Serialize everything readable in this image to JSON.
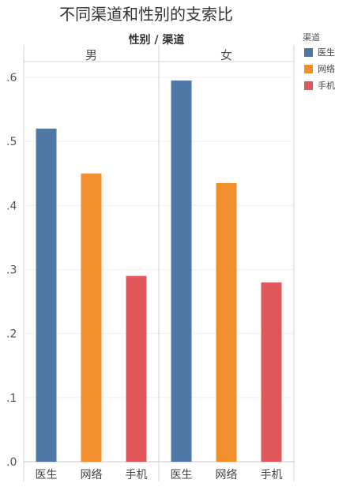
{
  "chart_data": {
    "type": "bar",
    "title": "不同渠道和性别的支索比",
    "subtitle": "性别 / 渠道",
    "panels": [
      {
        "name": "男",
        "categories": [
          "医生",
          "网络",
          "手机"
        ],
        "values": [
          0.52,
          0.45,
          0.29
        ],
        "colors": [
          "#4e79a7",
          "#f28e2b",
          "#e15759"
        ]
      },
      {
        "name": "女",
        "categories": [
          "医生",
          "网络",
          "手机"
        ],
        "values": [
          0.595,
          0.435,
          0.28
        ],
        "colors": [
          "#4e79a7",
          "#f28e2b",
          "#e15759"
        ]
      }
    ],
    "yticks": [
      ".0",
      ".1",
      ".2",
      ".3",
      ".4",
      ".5",
      ".6"
    ],
    "ylim": [
      0,
      0.6
    ],
    "grid": true,
    "legend": {
      "title": "渠道",
      "position": "right",
      "items": [
        {
          "label": "医生",
          "color": "#4e79a7"
        },
        {
          "label": "网络",
          "color": "#f28e2b"
        },
        {
          "label": "手机",
          "color": "#e15759"
        }
      ]
    }
  }
}
